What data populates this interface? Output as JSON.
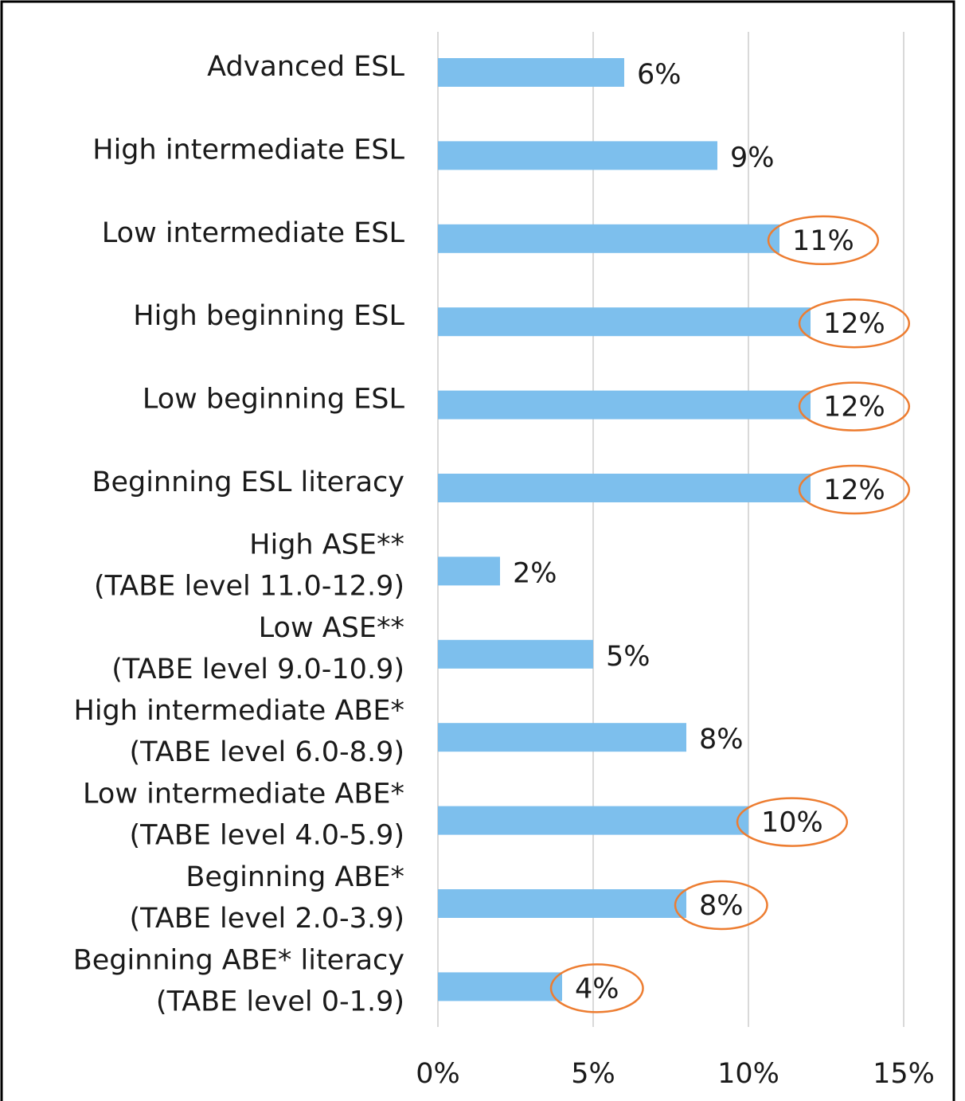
{
  "chart_data": {
    "type": "barh",
    "categories": [
      "Advanced ESL",
      "High intermediate ESL",
      "Low intermediate ESL",
      "High beginning ESL",
      "Low beginning ESL",
      "Beginning ESL literacy",
      "High ASE**\n(TABE level 11.0-12.9)",
      "Low ASE**\n(TABE level 9.0-10.9)",
      "High intermediate ABE*\n(TABE level 6.0-8.9)",
      "Low intermediate ABE*\n(TABE level 4.0-5.9)",
      "Beginning ABE*\n(TABE level 2.0-3.9)",
      "Beginning ABE* literacy\n(TABE level 0-1.9)"
    ],
    "values": [
      6,
      9,
      11,
      12,
      12,
      12,
      2,
      5,
      8,
      10,
      8,
      4
    ],
    "value_labels": [
      "6%",
      "9%",
      "11%",
      "12%",
      "12%",
      "12%",
      "2%",
      "5%",
      "8%",
      "10%",
      "8%",
      "4%"
    ],
    "color": "#7dbfed",
    "highlighted": [
      false,
      false,
      true,
      true,
      true,
      true,
      false,
      false,
      false,
      true,
      true,
      true
    ],
    "highlight_color": "#ed7d31",
    "xlim": [
      0,
      15
    ],
    "xticks": [
      {
        "value": 0,
        "label": "0%"
      },
      {
        "value": 5,
        "label": "5%"
      },
      {
        "value": 10,
        "label": "10%"
      },
      {
        "value": 15,
        "label": "15%"
      }
    ],
    "grid": true
  }
}
